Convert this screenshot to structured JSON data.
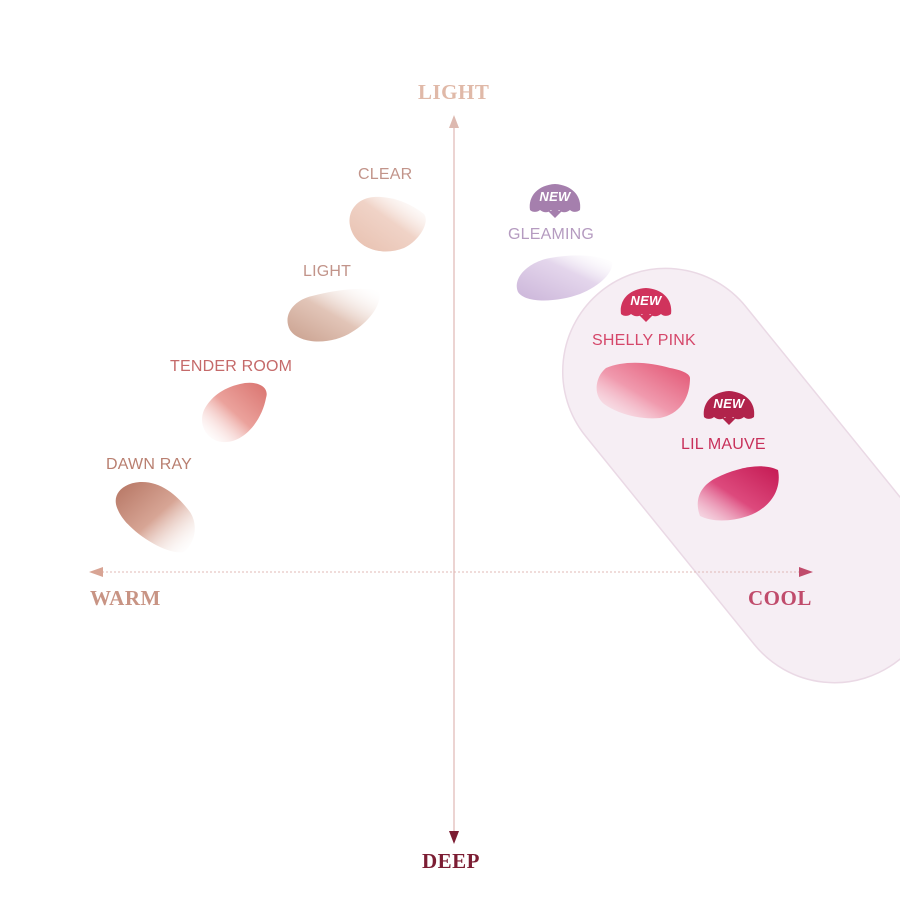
{
  "axes": {
    "top": "LIGHT",
    "left": "WARM",
    "right": "COOL",
    "bottom": "DEEP"
  },
  "shades": [
    {
      "name": "CLEAR",
      "color": "#e9c3b3",
      "tone": "warm"
    },
    {
      "name": "LIGHT",
      "color": "#d7b0a0",
      "tone": "warm"
    },
    {
      "name": "TENDER ROOM",
      "color": "#e28c87",
      "tone": "warm"
    },
    {
      "name": "DAWN RAY",
      "color": "#c98a76",
      "tone": "warm"
    },
    {
      "name": "GLEAMING",
      "color": "#d9c4e3",
      "tone": "cool",
      "badge": "NEW"
    },
    {
      "name": "SHELLY PINK",
      "color": "#ec6f8c",
      "tone": "cool",
      "badge": "NEW"
    },
    {
      "name": "LIL MAUVE",
      "color": "#d2215c",
      "tone": "cool",
      "badge": "NEW"
    }
  ],
  "colors": {
    "axis_line": "#d8a9a6",
    "cool_group_bg": "#f6eef4",
    "badge_gleaming": "#a57fad",
    "badge_shelly": "#d0335c",
    "badge_mauve": "#b1234b"
  }
}
